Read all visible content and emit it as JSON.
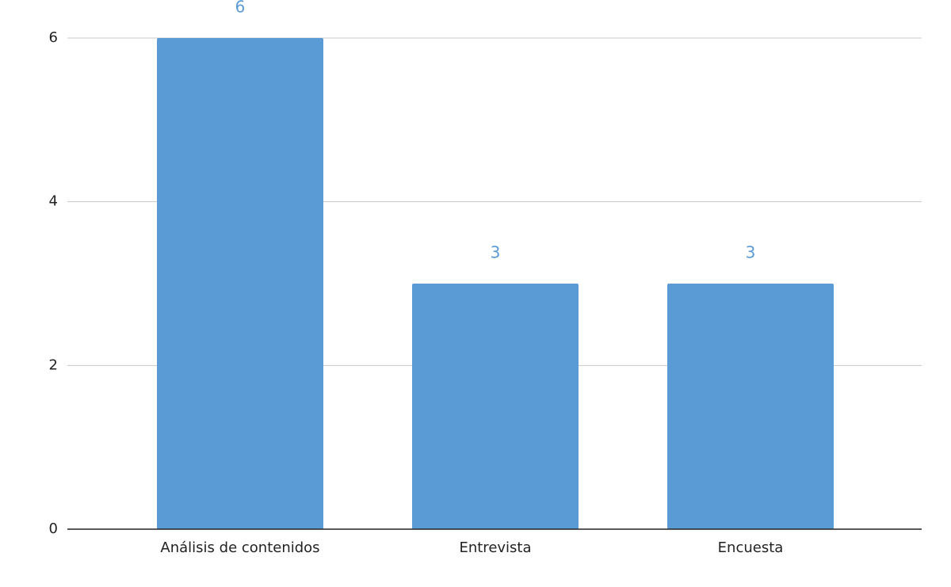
{
  "chart_data": {
    "type": "bar",
    "categories": [
      "Análisis de contenidos",
      "Entrevista",
      "Encuesta"
    ],
    "values": [
      6,
      3,
      3
    ],
    "color": "#5b9bd5",
    "ylim": [
      0,
      6
    ],
    "yticks": [
      0,
      2,
      4,
      6
    ],
    "grid": true,
    "data_labels": true
  }
}
